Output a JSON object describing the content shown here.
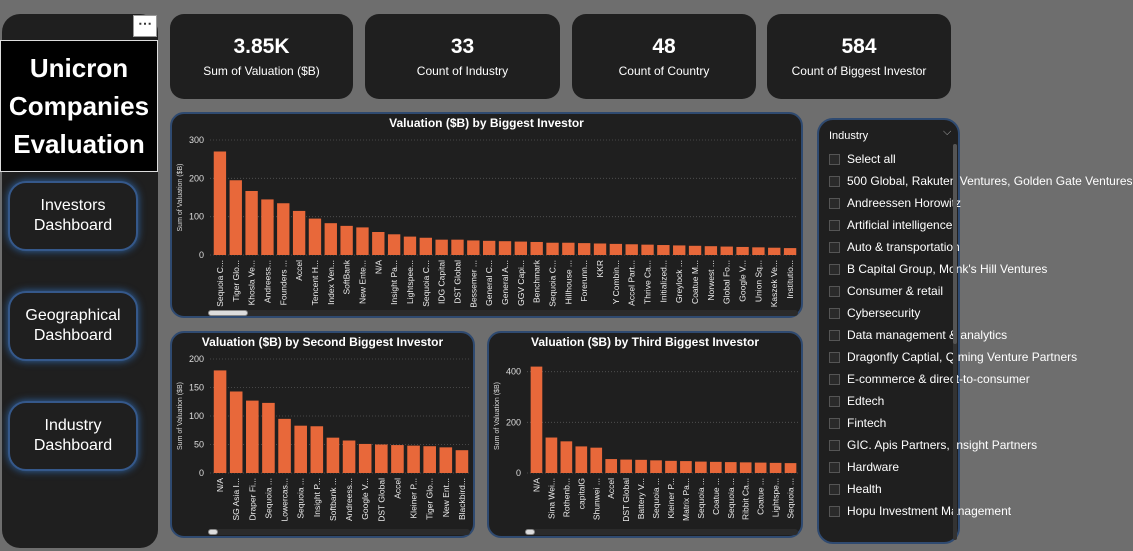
{
  "title": {
    "line1": "Unicron",
    "line2": "Companies",
    "line3": "Evaluation"
  },
  "more_label": "⋯",
  "nav": [
    {
      "line1": "Investors",
      "line2": "Dashboard"
    },
    {
      "line1": "Geographical",
      "line2": "Dashboard"
    },
    {
      "line1": "Industry",
      "line2": "Dashboard"
    }
  ],
  "kpis": [
    {
      "value": "3.85K",
      "label": "Sum of Valuation ($B)"
    },
    {
      "value": "33",
      "label": "Count of Industry"
    },
    {
      "value": "48",
      "label": "Count of Country"
    },
    {
      "value": "584",
      "label": "Count of Biggest Investor"
    }
  ],
  "colors": {
    "bar": "#e8683a",
    "panel": "#1f1f1f",
    "accent": "#2f4a70"
  },
  "chart_data": [
    {
      "type": "bar",
      "title": "Valuation ($B) by Biggest Investor",
      "ylabel": "Sum of Valuation ($B)",
      "ylim": [
        0,
        300
      ],
      "yticks": [
        0,
        100,
        200,
        300
      ],
      "categories": [
        "Sequoia C...",
        "Tiger Glo...",
        "Khosla Ve...",
        "Andreess...",
        "Founders ...",
        "Accel",
        "Tencent H...",
        "Index Ven...",
        "SoftBank",
        "New Ente...",
        "N/A",
        "Insight Pa...",
        "Lightspee...",
        "Sequoia C...",
        "IDG Capital",
        "DST Global",
        "Bessemer ...",
        "General C...",
        "General A...",
        "GGV Capi...",
        "Benchmark",
        "Sequoia C...",
        "Hillhouse ...",
        "Forerunn...",
        "KKR",
        "Y Combin...",
        "Accel Part...",
        "Thrive Ca...",
        "Initialized...",
        "Greylock ...",
        "Coatue M...",
        "Norwest ...",
        "Global Fo...",
        "Google V...",
        "Union Sq...",
        "Kaszek Ve...",
        "Institutio..."
      ],
      "values": [
        270,
        195,
        167,
        145,
        135,
        115,
        95,
        83,
        76,
        72,
        60,
        54,
        48,
        45,
        40,
        40,
        38,
        37,
        36,
        35,
        34,
        32,
        32,
        31,
        30,
        29,
        28,
        27,
        26,
        25,
        24,
        23,
        22,
        21,
        20,
        19,
        18
      ]
    },
    {
      "type": "bar",
      "title": "Valuation ($B) by Second Biggest Investor",
      "ylabel": "Sum of Valuation ($B)",
      "ylim": [
        0,
        200
      ],
      "yticks": [
        0,
        50,
        100,
        150,
        200
      ],
      "categories": [
        "N/A",
        "SG Asia I...",
        "Draper Fi...",
        "Sequoia ...",
        "Lowercas...",
        "Sequoia ...",
        "Insight P...",
        "Softbank ...",
        "Andreess...",
        "Google V...",
        "DST Global",
        "Accel",
        "Kleiner P...",
        "Tiger Glo...",
        "New Ent...",
        "Blackbird..."
      ],
      "values": [
        180,
        143,
        127,
        123,
        95,
        83,
        82,
        62,
        57,
        51,
        50,
        49,
        48,
        47,
        45,
        40
      ]
    },
    {
      "type": "bar",
      "title": "Valuation ($B) by Third Biggest Investor",
      "ylabel": "Sum of Valuation ($B)",
      "ylim": [
        0,
        450
      ],
      "yticks": [
        0,
        200,
        400
      ],
      "categories": [
        "N/A",
        "Sina Wei...",
        "Rothenb...",
        "capitalG",
        "Shunwei ...",
        "Accel",
        "DST Global",
        "Battery V...",
        "Sequoia ...",
        "Kleiner P...",
        "Matrix Pa...",
        "Sequoia ...",
        "Coatue ...",
        "Sequoia ...",
        "Ribbit Ca...",
        "Coatue ...",
        "Lightspe...",
        "Sequoia ..."
      ],
      "values": [
        420,
        140,
        125,
        105,
        100,
        55,
        53,
        52,
        50,
        48,
        47,
        45,
        44,
        43,
        42,
        41,
        40,
        39
      ]
    }
  ],
  "slicer": {
    "header": "Industry",
    "items": [
      "Select all",
      "500 Global, Rakuten Ventures, Golden Gate Ventures",
      "Andreessen Horowitz",
      "Artificial intelligence",
      "Auto & transportation",
      "B Capital Group, Monk's Hill Ventures",
      "Consumer & retail",
      "Cybersecurity",
      "Data management & analytics",
      "Dragonfly Captial, Qiming Venture Partners",
      "E-commerce & direct-to-consumer",
      "Edtech",
      "Fintech",
      "GIC. Apis Partners, Insight Partners",
      "Hardware",
      "Health",
      "Hopu Investment Management"
    ]
  }
}
